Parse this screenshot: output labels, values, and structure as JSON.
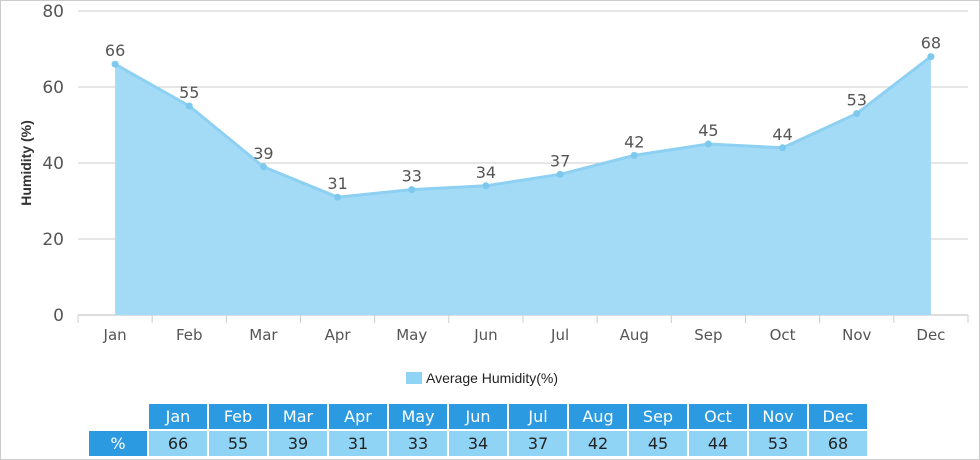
{
  "chart_data": {
    "type": "area",
    "categories": [
      "Jan",
      "Feb",
      "Mar",
      "Apr",
      "May",
      "Jun",
      "Jul",
      "Aug",
      "Sep",
      "Oct",
      "Nov",
      "Dec"
    ],
    "series": [
      {
        "name": "Average Humidity(%)",
        "values": [
          66,
          55,
          39,
          31,
          33,
          34,
          37,
          42,
          45,
          44,
          53,
          68
        ]
      }
    ],
    "ylabel": "Humidity (%)",
    "ylim": [
      0,
      80
    ],
    "yticks": [
      0,
      20,
      40,
      60,
      80
    ],
    "grid": true,
    "legend": "bottom",
    "colors": {
      "fill": "#a3dbf7",
      "line": "#8dd0f2",
      "point": "#7cc8ef"
    }
  },
  "table": {
    "row_label": "%"
  }
}
